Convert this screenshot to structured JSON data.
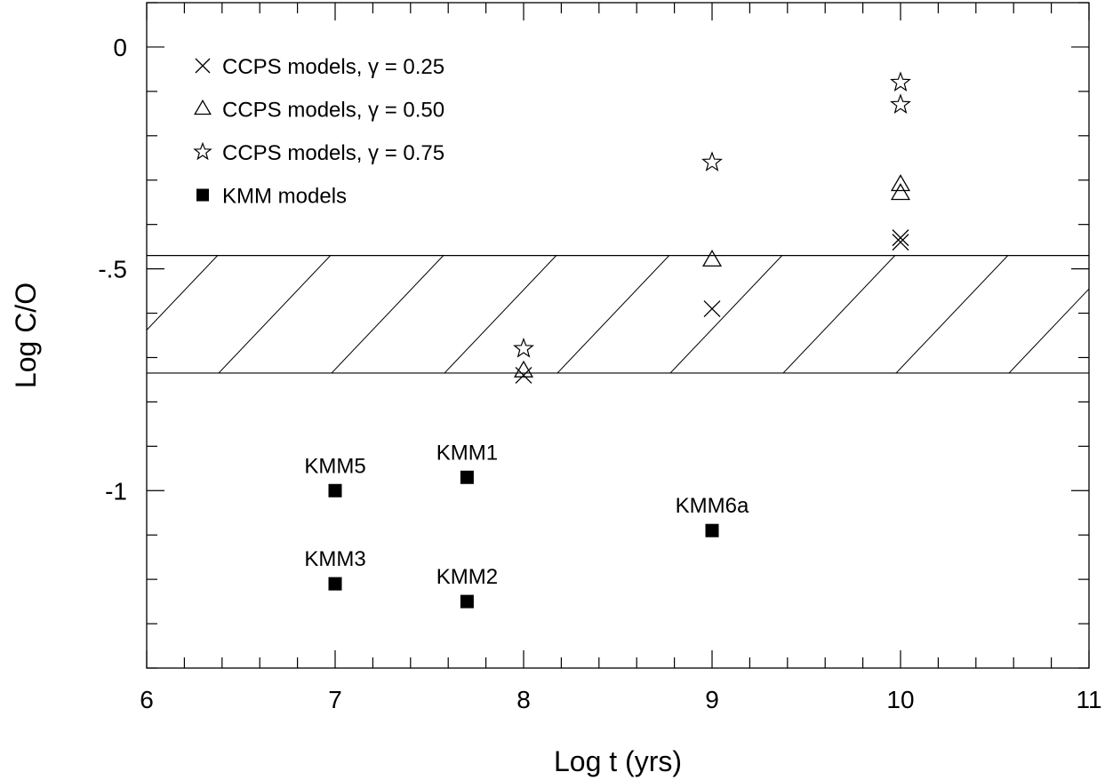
{
  "chart_data": {
    "type": "scatter",
    "title": "",
    "xlabel": "Log t (yrs)",
    "ylabel": "Log C/O",
    "xlim": [
      6,
      11
    ],
    "ylim": [
      -1.4,
      0.1
    ],
    "x_ticks": [
      {
        "value": 6,
        "label": "6"
      },
      {
        "value": 7,
        "label": "7"
      },
      {
        "value": 8,
        "label": "8"
      },
      {
        "value": 9,
        "label": "9"
      },
      {
        "value": 10,
        "label": "10"
      },
      {
        "value": 11,
        "label": "11"
      }
    ],
    "y_ticks": [
      {
        "value": 0,
        "label": "0"
      },
      {
        "value": -0.5,
        "label": "-.5"
      },
      {
        "value": -1,
        "label": "-1"
      }
    ],
    "x_minor_step": 0.2,
    "y_minor_step": 0.1,
    "grid": false,
    "legend_position": "top-left",
    "shaded_band": {
      "y_from": -0.735,
      "y_to": -0.47,
      "pattern": "diagonal-hatch"
    },
    "series": [
      {
        "name": "CCPS models, γ = 0.25",
        "marker": "cross",
        "points": [
          {
            "x": 8,
            "y": -0.74
          },
          {
            "x": 9,
            "y": -0.59
          },
          {
            "x": 10,
            "y": -0.43
          },
          {
            "x": 10,
            "y": -0.44
          }
        ]
      },
      {
        "name": "CCPS models, γ = 0.50",
        "marker": "triangle",
        "points": [
          {
            "x": 8,
            "y": -0.73
          },
          {
            "x": 9,
            "y": -0.48
          },
          {
            "x": 10,
            "y": -0.31
          },
          {
            "x": 10,
            "y": -0.33
          }
        ]
      },
      {
        "name": "CCPS models, γ = 0.75",
        "marker": "star",
        "points": [
          {
            "x": 8,
            "y": -0.68
          },
          {
            "x": 9,
            "y": -0.26
          },
          {
            "x": 10,
            "y": -0.08
          },
          {
            "x": 10,
            "y": -0.13
          }
        ]
      },
      {
        "name": "KMM models",
        "marker": "square",
        "points": [
          {
            "x": 7.7,
            "y": -0.97,
            "label": "KMM1"
          },
          {
            "x": 7.7,
            "y": -1.25,
            "label": "KMM2"
          },
          {
            "x": 7,
            "y": -1.21,
            "label": "KMM3"
          },
          {
            "x": 7,
            "y": -1.0,
            "label": "KMM5"
          },
          {
            "x": 9,
            "y": -1.09,
            "label": "KMM6a"
          }
        ]
      }
    ]
  }
}
